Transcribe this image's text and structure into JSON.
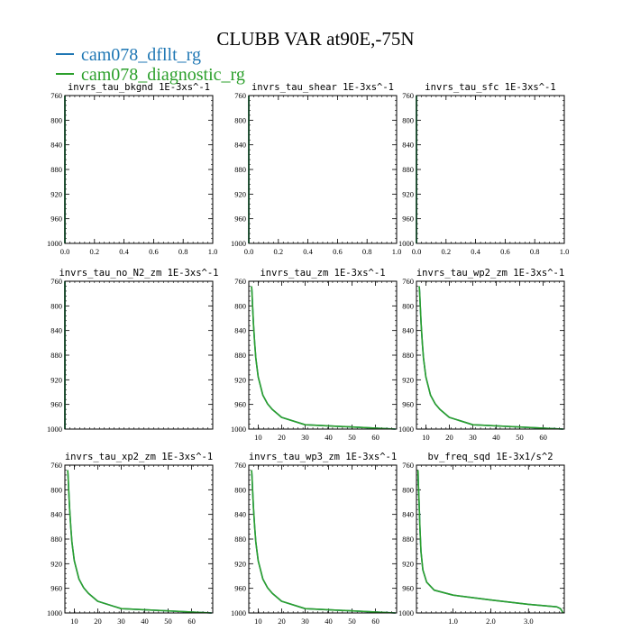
{
  "figure": {
    "title": "CLUBB VAR at90E,-75N",
    "legend": [
      {
        "name": "cam078_dfllt_rg",
        "color": "#1f77b4"
      },
      {
        "name": "cam078_diagnostic_rg",
        "color": "#2ca02c"
      }
    ]
  },
  "chart_data": [
    {
      "type": "line",
      "title": "invrs_tau_bkgnd",
      "units": "1E-3xs^-1",
      "xlim": [
        0,
        1
      ],
      "ylim": [
        760,
        1000
      ],
      "y_inverted": true,
      "xticks": [
        0.0,
        0.2,
        0.4,
        0.6,
        0.8,
        1.0
      ],
      "xtick_labels": [
        "0.0",
        "0.2",
        "0.4",
        "0.6",
        "0.8",
        "1.0"
      ],
      "yticks": [
        760,
        800,
        840,
        880,
        920,
        960,
        1000
      ],
      "series": [
        {
          "name": "cam078_dfllt_rg",
          "x": [
            0,
            0
          ],
          "y": [
            760,
            1000
          ]
        },
        {
          "name": "cam078_diagnostic_rg",
          "x": [
            0,
            0
          ],
          "y": [
            760,
            1000
          ]
        }
      ]
    },
    {
      "type": "line",
      "title": "invrs_tau_shear",
      "units": "1E-3xs^-1",
      "xlim": [
        0,
        1
      ],
      "ylim": [
        760,
        1000
      ],
      "y_inverted": true,
      "xticks": [
        0.0,
        0.2,
        0.4,
        0.6,
        0.8,
        1.0
      ],
      "xtick_labels": [
        "0.0",
        "0.2",
        "0.4",
        "0.6",
        "0.8",
        "1.0"
      ],
      "yticks": [
        760,
        800,
        840,
        880,
        920,
        960,
        1000
      ],
      "series": [
        {
          "name": "cam078_dfllt_rg",
          "x": [
            0,
            0
          ],
          "y": [
            760,
            1000
          ]
        },
        {
          "name": "cam078_diagnostic_rg",
          "x": [
            0,
            0
          ],
          "y": [
            760,
            1000
          ]
        }
      ]
    },
    {
      "type": "line",
      "title": "invrs_tau_sfc",
      "units": "1E-3xs^-1",
      "xlim": [
        0,
        1
      ],
      "ylim": [
        760,
        1000
      ],
      "y_inverted": true,
      "xticks": [
        0.0,
        0.2,
        0.4,
        0.6,
        0.8,
        1.0
      ],
      "xtick_labels": [
        "0.0",
        "0.2",
        "0.4",
        "0.6",
        "0.8",
        "1.0"
      ],
      "yticks": [
        760,
        800,
        840,
        880,
        920,
        960,
        1000
      ],
      "series": [
        {
          "name": "cam078_dfllt_rg",
          "x": [
            0,
            0
          ],
          "y": [
            760,
            1000
          ]
        },
        {
          "name": "cam078_diagnostic_rg",
          "x": [
            0,
            0
          ],
          "y": [
            760,
            1000
          ]
        }
      ]
    },
    {
      "type": "line",
      "title": "invrs_tau_no_N2_zm",
      "units": "1E-3xs^-1",
      "xlim": [
        0,
        1
      ],
      "ylim": [
        760,
        1000
      ],
      "y_inverted": true,
      "xticks": [],
      "xtick_labels": [],
      "yticks": [
        760,
        800,
        840,
        880,
        920,
        960,
        1000
      ],
      "series": [
        {
          "name": "cam078_dfllt_rg",
          "x": [
            0,
            0
          ],
          "y": [
            760,
            1000
          ]
        },
        {
          "name": "cam078_diagnostic_rg",
          "x": [
            0,
            0
          ],
          "y": [
            760,
            1000
          ]
        }
      ]
    },
    {
      "type": "line",
      "title": "invrs_tau_zm",
      "units": "1E-3xs^-1",
      "xlim": [
        6,
        69
      ],
      "ylim": [
        760,
        1000
      ],
      "y_inverted": true,
      "xticks": [
        10,
        20,
        30,
        40,
        50,
        60
      ],
      "xtick_labels": [
        "10",
        "20",
        "30",
        "40",
        "50",
        "60"
      ],
      "yticks": [
        760,
        800,
        840,
        880,
        920,
        960,
        1000
      ],
      "series": [
        {
          "name": "cam078_dfllt_rg",
          "x": [
            68.5,
            30,
            20,
            16,
            14,
            12,
            11,
            10,
            9.5,
            9,
            8.5,
            8,
            7.6,
            7.4,
            7.2
          ],
          "y": [
            1000,
            993,
            981,
            968,
            959,
            945,
            930,
            915,
            900,
            885,
            860,
            830,
            800,
            780,
            768
          ]
        },
        {
          "name": "cam078_diagnostic_rg",
          "x": [
            68.5,
            30,
            20,
            16,
            14,
            12,
            11,
            10,
            9.5,
            9,
            8.5,
            8,
            7.6,
            7.4,
            7.2
          ],
          "y": [
            1000,
            993,
            981,
            968,
            959,
            945,
            930,
            915,
            900,
            885,
            860,
            830,
            800,
            780,
            768
          ]
        }
      ]
    },
    {
      "type": "line",
      "title": "invrs_tau_wp2_zm",
      "units": "1E-3xs^-1",
      "xlim": [
        6,
        69
      ],
      "ylim": [
        760,
        1000
      ],
      "y_inverted": true,
      "xticks": [
        10,
        20,
        30,
        40,
        50,
        60
      ],
      "xtick_labels": [
        "10",
        "20",
        "30",
        "40",
        "50",
        "60"
      ],
      "yticks": [
        760,
        800,
        840,
        880,
        920,
        960,
        1000
      ],
      "series": [
        {
          "name": "cam078_dfllt_rg",
          "x": [
            68.5,
            30,
            20,
            16,
            14,
            12,
            11,
            10,
            9.5,
            9,
            8.5,
            8,
            7.6,
            7.4,
            7.2
          ],
          "y": [
            1000,
            993,
            981,
            968,
            959,
            945,
            930,
            915,
            900,
            885,
            860,
            830,
            800,
            780,
            768
          ]
        },
        {
          "name": "cam078_diagnostic_rg",
          "x": [
            68.5,
            30,
            20,
            16,
            14,
            12,
            11,
            10,
            9.5,
            9,
            8.5,
            8,
            7.6,
            7.4,
            7.2
          ],
          "y": [
            1000,
            993,
            981,
            968,
            959,
            945,
            930,
            915,
            900,
            885,
            860,
            830,
            800,
            780,
            768
          ]
        }
      ]
    },
    {
      "type": "line",
      "title": "invrs_tau_xp2_zm",
      "units": "1E-3xs^-1",
      "xlim": [
        6,
        69
      ],
      "ylim": [
        760,
        1000
      ],
      "y_inverted": true,
      "xticks": [
        10,
        20,
        30,
        40,
        50,
        60
      ],
      "xtick_labels": [
        "10",
        "20",
        "30",
        "40",
        "50",
        "60"
      ],
      "yticks": [
        760,
        800,
        840,
        880,
        920,
        960,
        1000
      ],
      "series": [
        {
          "name": "cam078_dfllt_rg",
          "x": [
            68.5,
            30,
            20,
            16,
            14,
            12,
            11,
            10,
            9.5,
            9,
            8.5,
            8,
            7.6,
            7.4,
            7.2
          ],
          "y": [
            1000,
            993,
            981,
            968,
            959,
            945,
            930,
            915,
            900,
            885,
            860,
            830,
            800,
            780,
            768
          ]
        },
        {
          "name": "cam078_diagnostic_rg",
          "x": [
            68.5,
            30,
            20,
            16,
            14,
            12,
            11,
            10,
            9.5,
            9,
            8.5,
            8,
            7.6,
            7.4,
            7.2
          ],
          "y": [
            1000,
            993,
            981,
            968,
            959,
            945,
            930,
            915,
            900,
            885,
            860,
            830,
            800,
            780,
            768
          ]
        }
      ]
    },
    {
      "type": "line",
      "title": "invrs_tau_wp3_zm",
      "units": "1E-3xs^-1",
      "xlim": [
        6,
        69
      ],
      "ylim": [
        760,
        1000
      ],
      "y_inverted": true,
      "xticks": [
        10,
        20,
        30,
        40,
        50,
        60
      ],
      "xtick_labels": [
        "10",
        "20",
        "30",
        "40",
        "50",
        "60"
      ],
      "yticks": [
        760,
        800,
        840,
        880,
        920,
        960,
        1000
      ],
      "series": [
        {
          "name": "cam078_dfllt_rg",
          "x": [
            68.5,
            30,
            20,
            16,
            14,
            12,
            11,
            10,
            9.5,
            9,
            8.5,
            8,
            7.6,
            7.4,
            7.2
          ],
          "y": [
            1000,
            993,
            981,
            968,
            959,
            945,
            930,
            915,
            900,
            885,
            860,
            830,
            800,
            780,
            768
          ]
        },
        {
          "name": "cam078_diagnostic_rg",
          "x": [
            68.5,
            30,
            20,
            16,
            14,
            12,
            11,
            10,
            9.5,
            9,
            8.5,
            8,
            7.6,
            7.4,
            7.2
          ],
          "y": [
            1000,
            993,
            981,
            968,
            959,
            945,
            930,
            915,
            900,
            885,
            860,
            830,
            800,
            780,
            768
          ]
        }
      ]
    },
    {
      "type": "line",
      "title": "bv_freq_sqd",
      "units": "1E-3x1/s^2",
      "xlim": [
        0.03,
        3.95
      ],
      "ylim": [
        760,
        1000
      ],
      "y_inverted": true,
      "xticks": [
        1.0,
        2.0,
        3.0
      ],
      "xtick_labels": [
        "1.0",
        "2.0",
        "3.0"
      ],
      "yticks": [
        760,
        800,
        840,
        880,
        920,
        960,
        1000
      ],
      "series": [
        {
          "name": "cam078_dfllt_rg",
          "x": [
            3.92,
            3.85,
            3.75,
            3.0,
            2.0,
            1.0,
            0.5,
            0.3,
            0.2,
            0.15,
            0.12,
            0.1,
            0.08,
            0.07
          ],
          "y": [
            1000,
            993,
            990,
            986,
            979,
            971,
            963,
            950,
            930,
            900,
            860,
            820,
            790,
            768
          ]
        },
        {
          "name": "cam078_diagnostic_rg",
          "x": [
            3.92,
            3.85,
            3.75,
            3.0,
            2.0,
            1.0,
            0.5,
            0.3,
            0.2,
            0.15,
            0.12,
            0.1,
            0.08,
            0.07
          ],
          "y": [
            1000,
            993,
            990,
            986,
            979,
            971,
            963,
            950,
            930,
            900,
            860,
            820,
            790,
            768
          ]
        }
      ]
    }
  ]
}
